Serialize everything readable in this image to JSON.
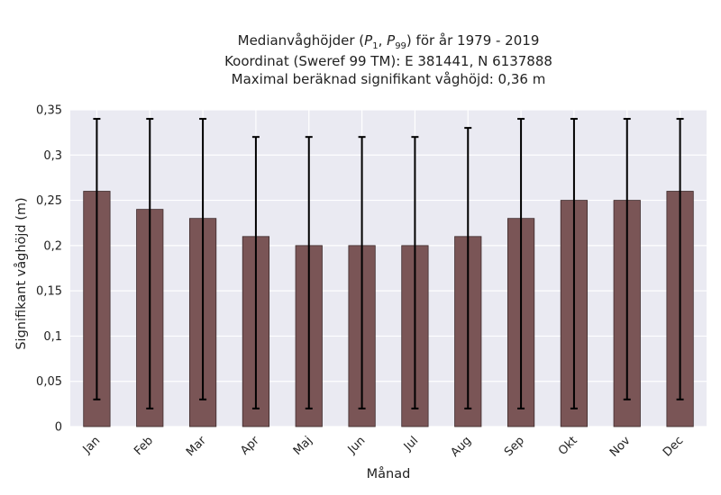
{
  "chart_data": {
    "type": "bar",
    "title_lines": [
      "Medianvåghöjder (P_1, P_99) för år 1979 - 2019",
      "Koordinat (Sweref 99 TM): E 381441, N 6137888",
      "Maximal beräknad signifikant våghöjd: 0,36 m"
    ],
    "title": {
      "line1_prefix": "Medianvåghöjder (",
      "p_symbol": "P",
      "sub1": "1",
      "comma": ", ",
      "sub2": "99",
      "line1_suffix": ") för år 1979 - 2019",
      "line2": "Koordinat (Sweref 99 TM): E 381441, N 6137888",
      "line3": "Maximal beräknad signifikant våghöjd: 0,36 m"
    },
    "xlabel": "Månad",
    "ylabel": "Signifikant våghöjd (m)",
    "ylim": [
      0,
      0.35
    ],
    "yticks": [
      0,
      0.05,
      0.1,
      0.15,
      0.2,
      0.25,
      0.3,
      0.35
    ],
    "ytick_labels": [
      "0",
      "0,05",
      "0,1",
      "0,15",
      "0,2",
      "0,25",
      "0,3",
      "0,35"
    ],
    "categories": [
      "Jan",
      "Feb",
      "Mar",
      "Apr",
      "Maj",
      "Jun",
      "Jul",
      "Aug",
      "Sep",
      "Okt",
      "Nov",
      "Dec"
    ],
    "values": [
      0.26,
      0.24,
      0.23,
      0.21,
      0.2,
      0.2,
      0.2,
      0.21,
      0.23,
      0.25,
      0.25,
      0.26
    ],
    "error_low": [
      0.03,
      0.02,
      0.03,
      0.02,
      0.02,
      0.02,
      0.02,
      0.02,
      0.02,
      0.02,
      0.03,
      0.03
    ],
    "error_high": [
      0.34,
      0.34,
      0.34,
      0.32,
      0.32,
      0.32,
      0.32,
      0.33,
      0.34,
      0.34,
      0.34,
      0.34
    ],
    "grid": true,
    "colors": {
      "bar": "#7a5556",
      "bar_edge": "#3d2a2b",
      "errorbar": "#000000",
      "plot_bg": "#eaeaf2",
      "grid": "#ffffff"
    }
  }
}
